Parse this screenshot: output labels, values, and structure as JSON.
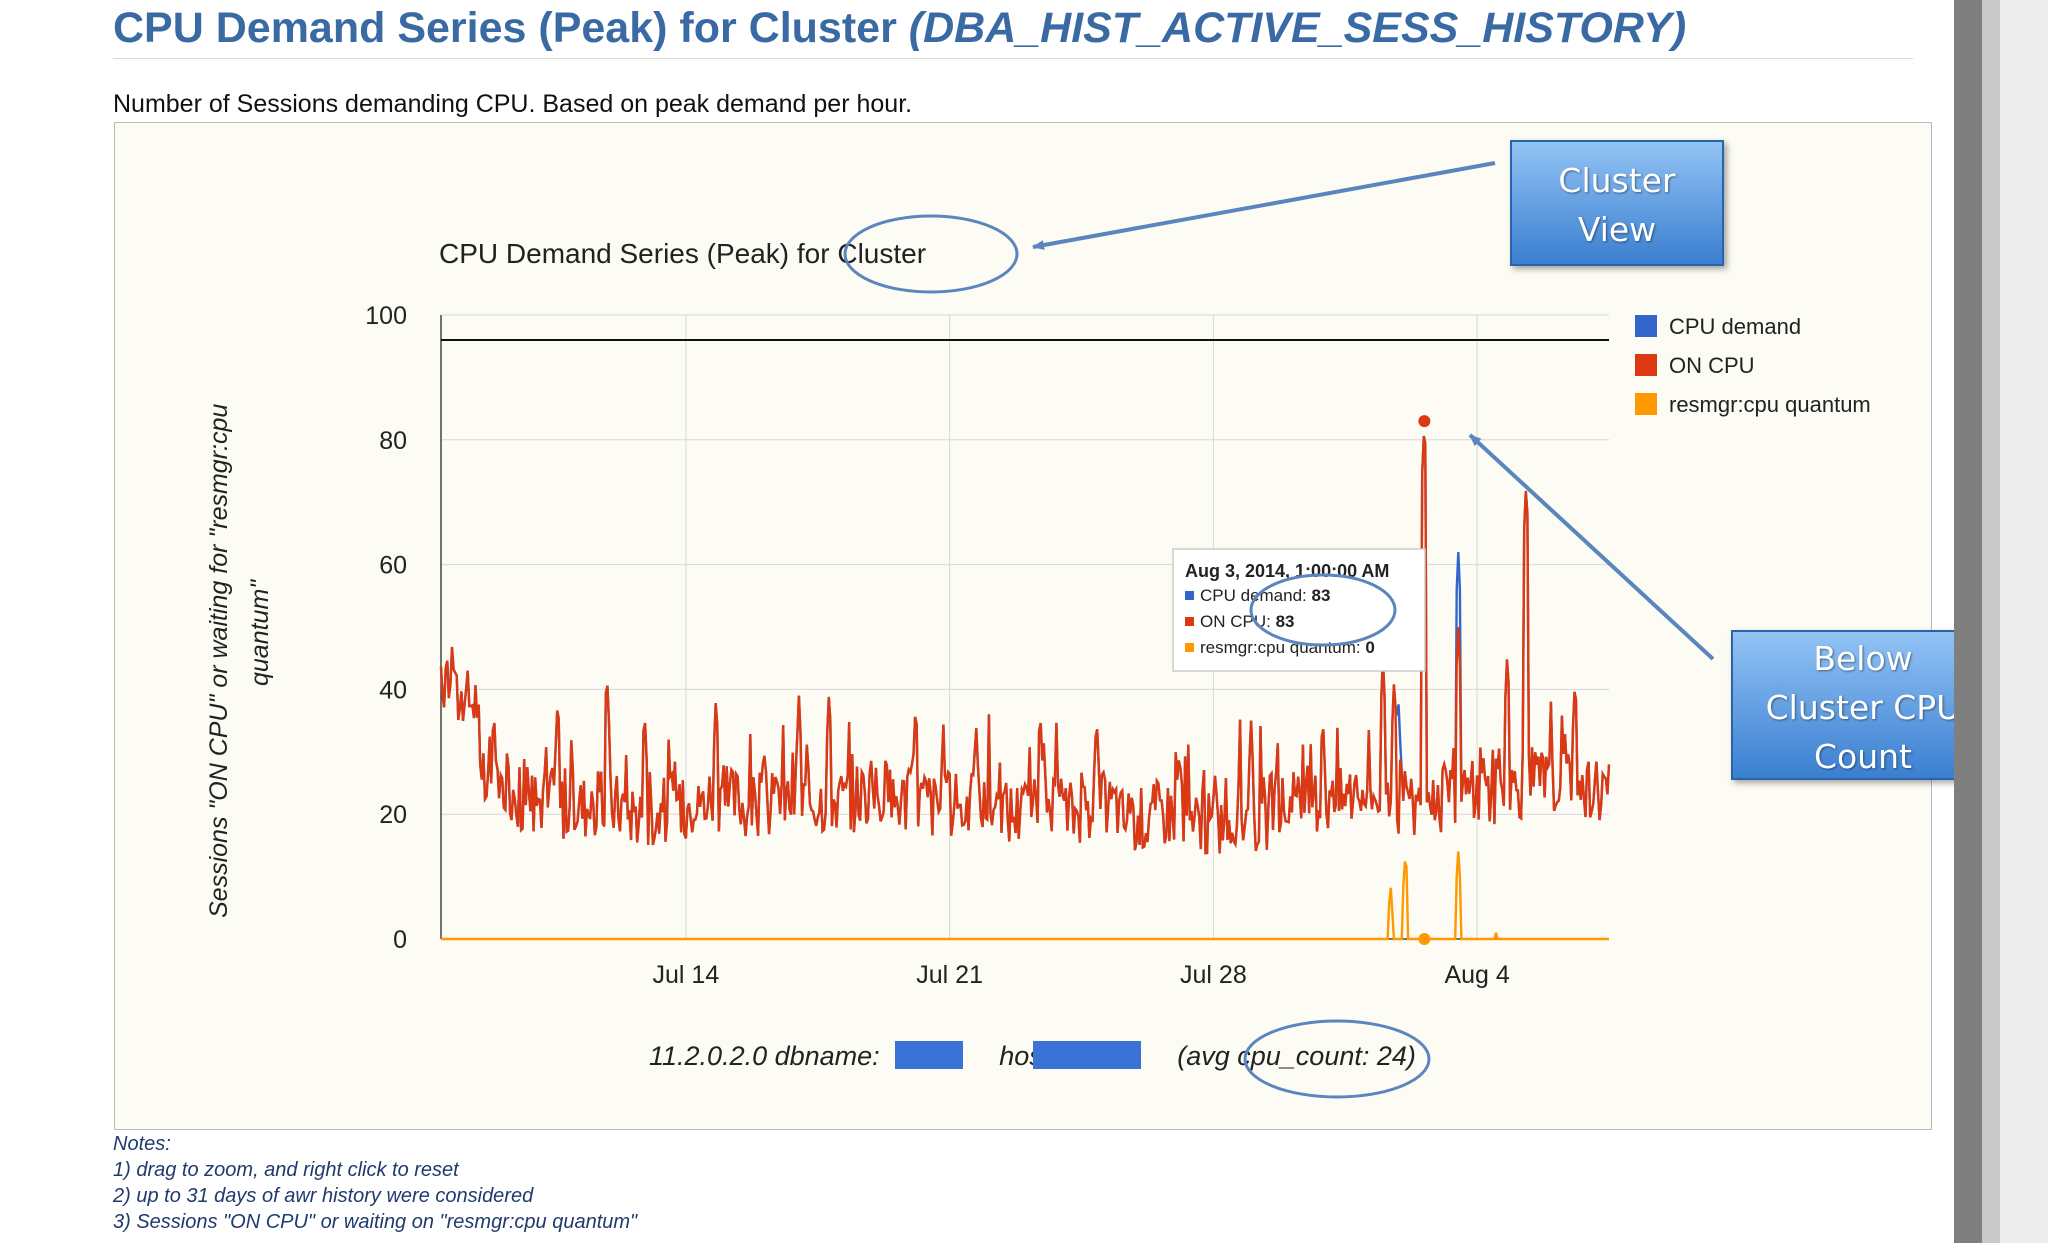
{
  "page": {
    "title_main": "CPU Demand Series (Peak) for Cluster ",
    "title_italic": "(DBA_HIST_ACTIVE_SESS_HISTORY)",
    "subtitle": "Number of Sessions demanding CPU. Based on peak demand per hour."
  },
  "notes": {
    "heading": "Notes:",
    "items": [
      "1) drag to zoom, and right click to reset",
      "2) up to 31 days of awr history were considered",
      "3) Sessions \"ON CPU\" or waiting on \"resmgr:cpu quantum\""
    ]
  },
  "callouts": {
    "cluster_view": [
      "Cluster",
      "View"
    ],
    "below_count": [
      "Below",
      "Cluster CPU",
      "Count"
    ]
  },
  "tooltip": {
    "title": "Aug 3, 2014, 1:00:00 AM",
    "rows": [
      {
        "label": "CPU demand: ",
        "value": "83"
      },
      {
        "label": "ON CPU: ",
        "value": "83"
      },
      {
        "label": "resmgr:cpu quantum: ",
        "value": "0"
      }
    ]
  },
  "chart_data": {
    "type": "line",
    "title": "CPU Demand Series (Peak) for Cluster",
    "ylabel_lines": [
      "Sessions \"ON CPU\" or waiting for \"resmgr:cpu",
      "quantum\""
    ],
    "xlabel": "",
    "ylim": [
      0,
      100
    ],
    "yticks": [
      0,
      20,
      40,
      60,
      80,
      100
    ],
    "xlim_days": [
      0,
      31
    ],
    "xticks": [
      {
        "label": "Jul 14",
        "day": 6.5
      },
      {
        "label": "Jul 21",
        "day": 13.5
      },
      {
        "label": "Jul 28",
        "day": 20.5
      },
      {
        "label": "Aug 4",
        "day": 27.5
      }
    ],
    "cpu_count_line": 96,
    "legend": [
      "CPU demand",
      "ON CPU",
      "resmgr:cpu quantum"
    ],
    "colors": {
      "cpu_demand": "#3366cc",
      "on_cpu": "#dc3912",
      "resmgr": "#ff9900"
    },
    "series_points_per_day": 24,
    "on_cpu_baseline": [
      38,
      24,
      22,
      21,
      21,
      20,
      21,
      22,
      21,
      22,
      22,
      23,
      22,
      21,
      21,
      20,
      20,
      21,
      19,
      20,
      18,
      19,
      21,
      22,
      23,
      21,
      22,
      23,
      24,
      25,
      24
    ],
    "on_cpu_spikes": [
      {
        "day": 0.15,
        "value": 47
      },
      {
        "day": 0.3,
        "value": 48
      },
      {
        "day": 1.4,
        "value": 37
      },
      {
        "day": 3.1,
        "value": 39
      },
      {
        "day": 4.4,
        "value": 43
      },
      {
        "day": 5.4,
        "value": 37
      },
      {
        "day": 7.3,
        "value": 39
      },
      {
        "day": 9.5,
        "value": 39
      },
      {
        "day": 10.3,
        "value": 40
      },
      {
        "day": 12.6,
        "value": 38
      },
      {
        "day": 14.2,
        "value": 35
      },
      {
        "day": 15.9,
        "value": 37
      },
      {
        "day": 17.4,
        "value": 36
      },
      {
        "day": 19.6,
        "value": 31
      },
      {
        "day": 21.5,
        "value": 35
      },
      {
        "day": 23.4,
        "value": 36
      },
      {
        "day": 25.0,
        "value": 45
      },
      {
        "day": 25.3,
        "value": 42
      },
      {
        "day": 26.1,
        "value": 83
      },
      {
        "day": 27.0,
        "value": 50
      },
      {
        "day": 28.3,
        "value": 46
      },
      {
        "day": 28.8,
        "value": 73
      },
      {
        "day": 30.1,
        "value": 42
      }
    ],
    "cpu_demand_spikes": [
      {
        "day": 25.4,
        "value": 40
      },
      {
        "day": 26.1,
        "value": 83
      },
      {
        "day": 27.0,
        "value": 62
      }
    ],
    "resmgr_spikes": [
      {
        "day": 25.2,
        "value": 9
      },
      {
        "day": 25.6,
        "value": 14
      },
      {
        "day": 27.0,
        "value": 14
      },
      {
        "day": 28.0,
        "value": 1
      }
    ],
    "highlight_point": {
      "day": 26.1,
      "value": 83
    },
    "footer": {
      "version": "11.2.0.2.0 dbname:",
      "host": " host:",
      "cpu_count": " (avg cpu_count: 24)"
    }
  }
}
